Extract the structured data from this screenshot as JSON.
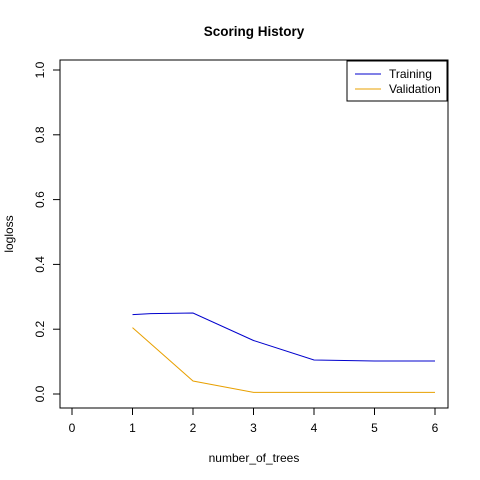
{
  "chart_data": {
    "type": "line",
    "title": "Scoring History",
    "xlabel": "number_of_trees",
    "ylabel": "logloss",
    "xlim": [
      0,
      6
    ],
    "ylim": [
      0,
      1
    ],
    "x_ticks": [
      "0",
      "1",
      "2",
      "3",
      "4",
      "5",
      "6"
    ],
    "y_ticks": [
      "0.0",
      "0.2",
      "0.4",
      "0.6",
      "0.8",
      "1.0"
    ],
    "grid": false,
    "legend_position": "top-right",
    "series": [
      {
        "name": "Training",
        "color": "#0000cd",
        "x": [
          1,
          1.3,
          2,
          3,
          4,
          5,
          6
        ],
        "y": [
          0.245,
          0.248,
          0.25,
          0.165,
          0.105,
          0.102,
          0.102
        ]
      },
      {
        "name": "Validation",
        "color": "#e8a000",
        "x": [
          1,
          2,
          3,
          4,
          5,
          6
        ],
        "y": [
          0.205,
          0.04,
          0.005,
          0.005,
          0.005,
          0.005
        ]
      }
    ]
  }
}
